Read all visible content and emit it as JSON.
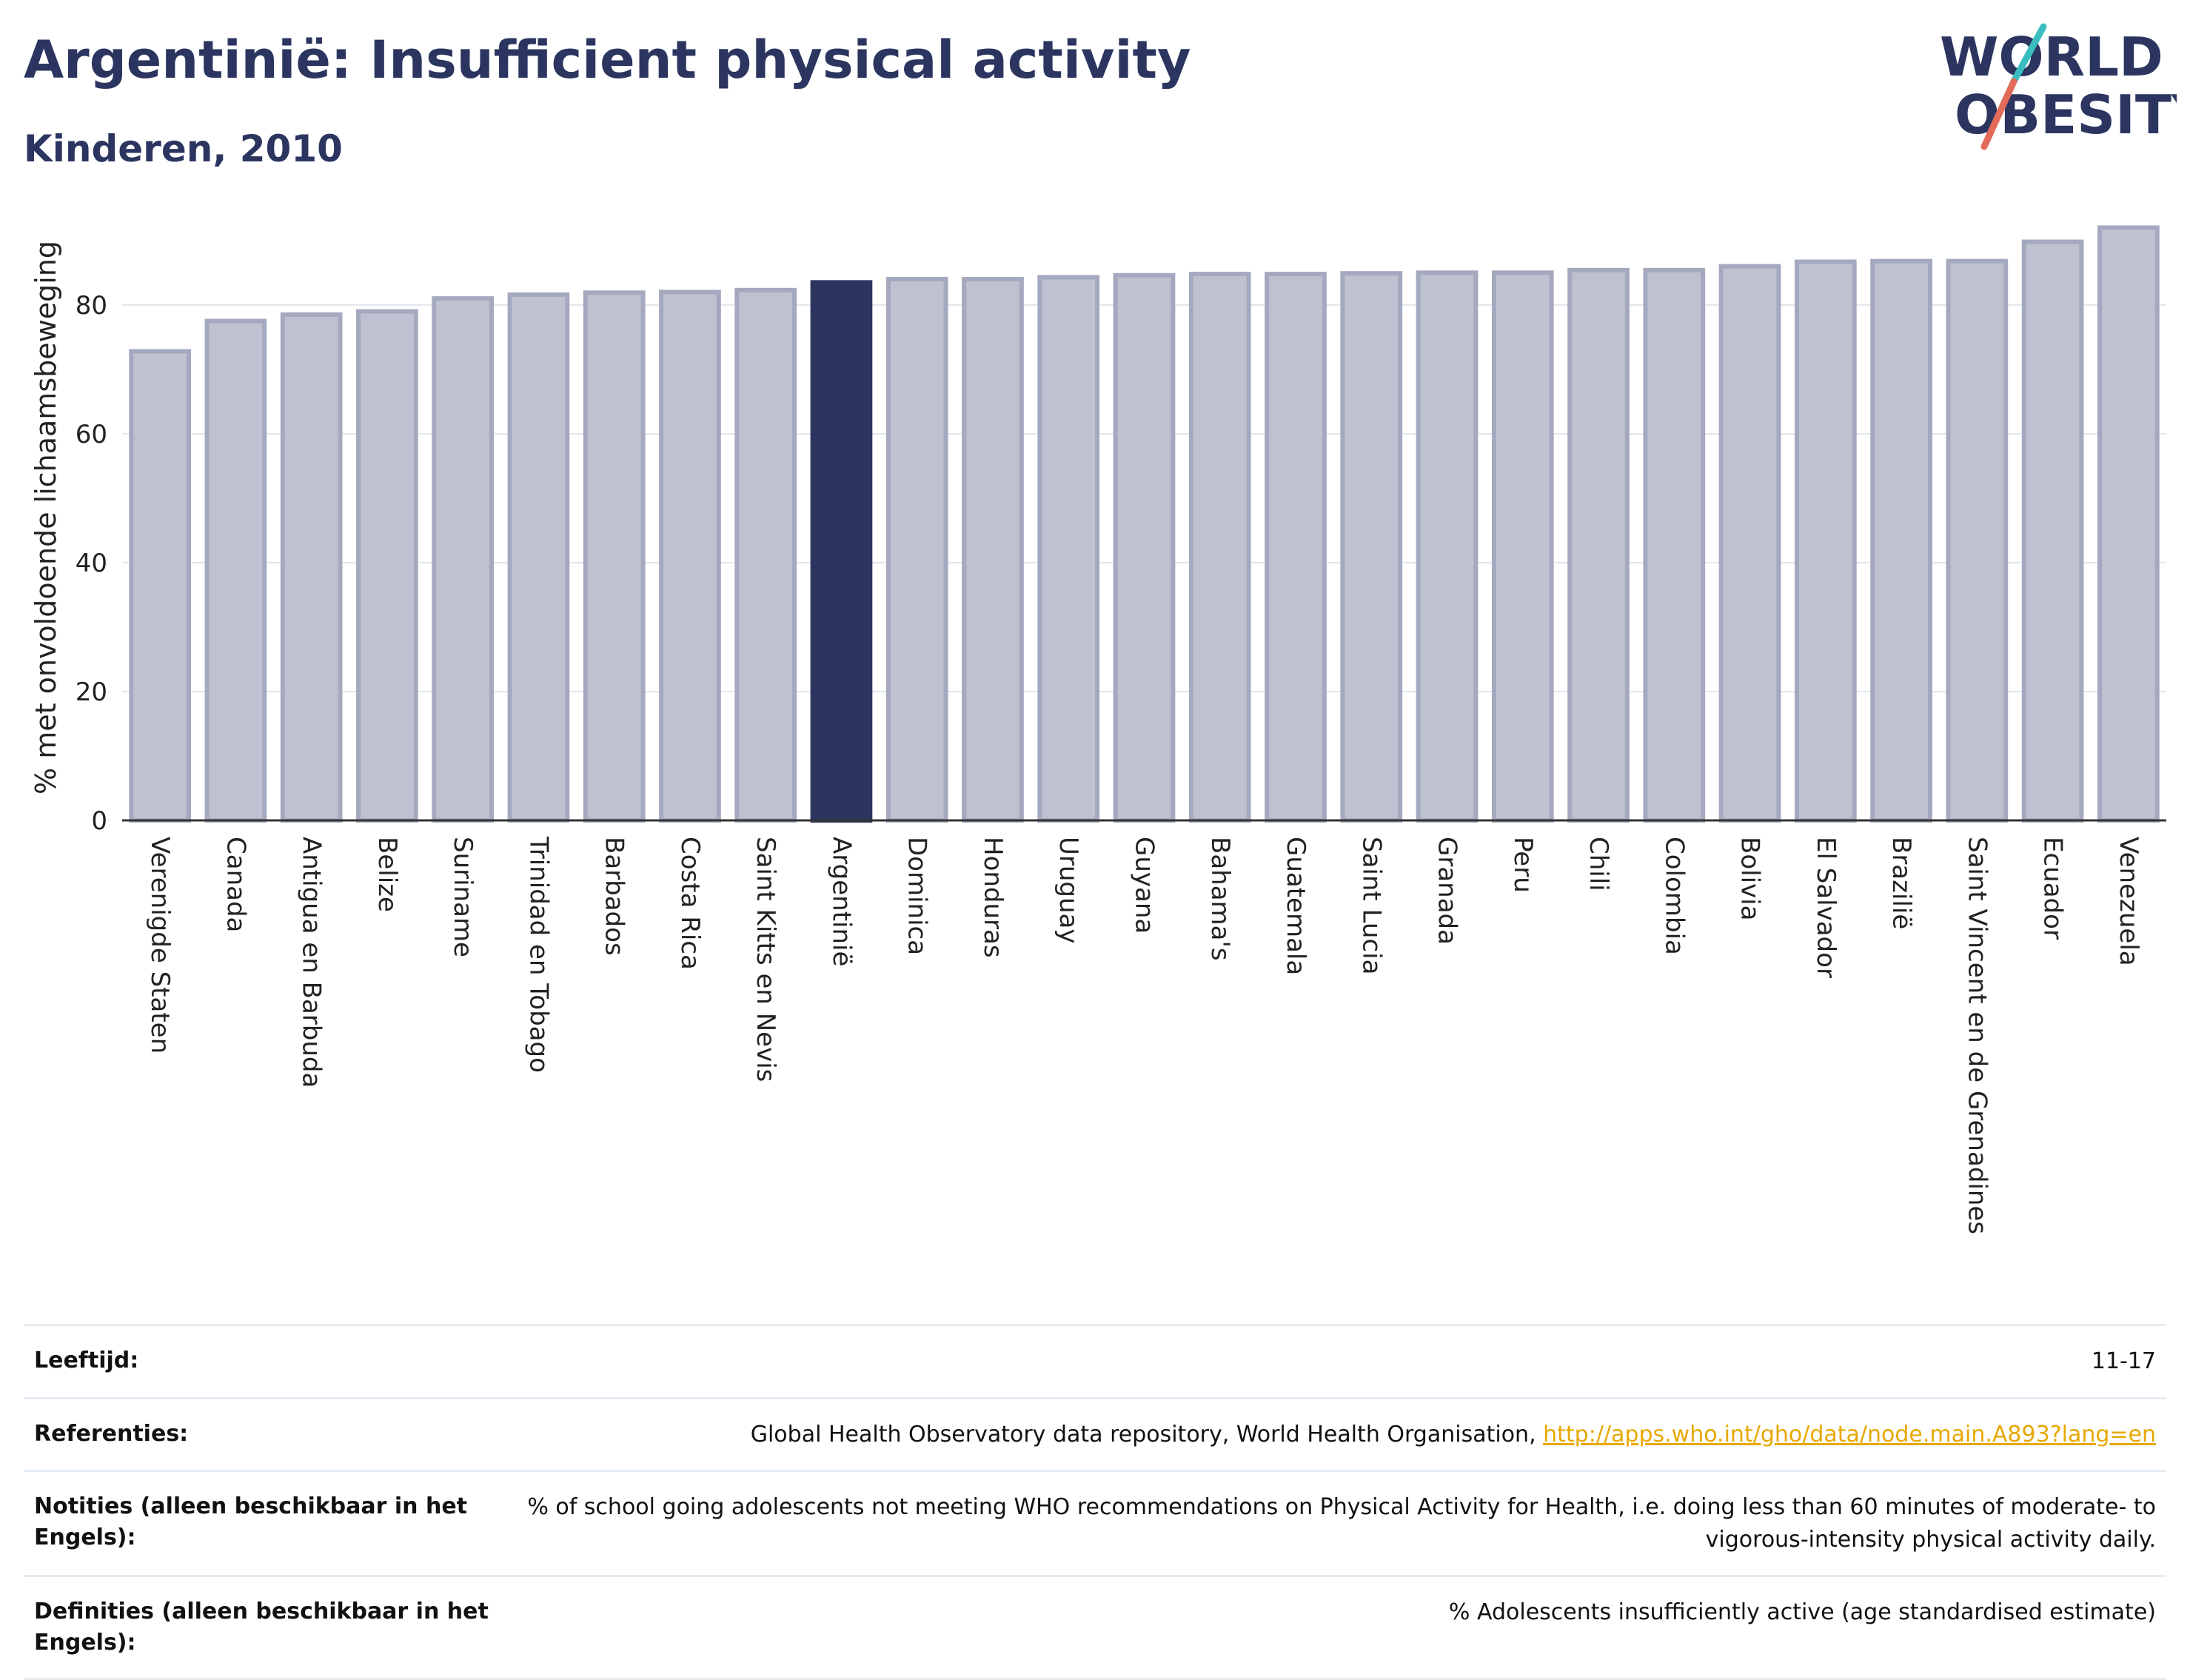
{
  "header": {
    "title": "Argentinië: Insufficient physical activity",
    "subtitle": "Kinderen, 2010",
    "logo_line1": "WORLD",
    "logo_line2": "OBESITY"
  },
  "colors": {
    "highlight": "#2b3560",
    "bar_fill": "#bec1cf",
    "bar_stroke": "#a4a9bf",
    "link": "#e6a800",
    "logo_teal": "#3bbdbf",
    "logo_coral": "#e36b5a"
  },
  "chart_data": {
    "type": "bar",
    "title": "Argentinië: Insufficient physical activity",
    "subtitle": "Kinderen, 2010",
    "xlabel": "",
    "ylabel": "% met onvoldoende lichaamsbeweging",
    "ylim": [
      0,
      94
    ],
    "yticks": [
      0,
      20,
      40,
      60,
      80
    ],
    "grid": true,
    "highlight_category": "Argentinië",
    "categories": [
      "Verenigde Staten",
      "Canada",
      "Antigua en Barbuda",
      "Belize",
      "Suriname",
      "Trinidad en Tobago",
      "Barbados",
      "Costa Rica",
      "Saint Kitts en Nevis",
      "Argentinië",
      "Dominica",
      "Honduras",
      "Uruguay",
      "Guyana",
      "Bahama's",
      "Guatemala",
      "Saint Lucia",
      "Granada",
      "Peru",
      "Chili",
      "Colombia",
      "Bolivia",
      "El Salvador",
      "Brazilië",
      "Saint Vincent en de Grenadines",
      "Ecuador",
      "Venezuela"
    ],
    "values": [
      72.8,
      77.5,
      78.5,
      79.0,
      81.0,
      81.6,
      81.9,
      82.0,
      82.3,
      83.5,
      84.0,
      84.0,
      84.3,
      84.6,
      84.8,
      84.8,
      84.9,
      85.0,
      85.0,
      85.4,
      85.4,
      86.0,
      86.7,
      86.8,
      86.8,
      89.8,
      92.0
    ]
  },
  "meta": [
    {
      "label": "Leeftijd:",
      "value": "11-17"
    },
    {
      "label": "Referenties:",
      "value": "Global Health Observatory data repository, World Health Organisation, ",
      "link": "http://apps.who.int/gho/data/node.main.A893?lang=en"
    },
    {
      "label": "Notities (alleen beschikbaar in het Engels):",
      "value": "% of school going adolescents not meeting WHO recommendations on Physical Activity for Health, i.e. doing less than 60 minutes of moderate- to vigorous-intensity physical activity daily."
    },
    {
      "label": "Definities (alleen beschikbaar in het Engels):",
      "value": "% Adolescents insufficiently active (age standardised estimate)"
    }
  ]
}
